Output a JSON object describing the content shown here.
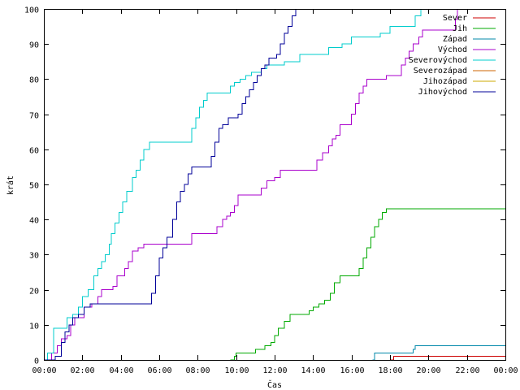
{
  "chart_data": {
    "type": "line",
    "xlabel": "Čas",
    "ylabel": "krát",
    "xlim": [
      0,
      24
    ],
    "ylim": [
      0,
      100
    ],
    "x_ticks": [
      "00:00",
      "02:00",
      "04:00",
      "06:00",
      "08:00",
      "10:00",
      "12:00",
      "14:00",
      "16:00",
      "18:00",
      "20:00",
      "22:00",
      "00:00"
    ],
    "y_ticks": [
      "0",
      "10",
      "20",
      "30",
      "40",
      "50",
      "60",
      "70",
      "80",
      "90",
      "100"
    ],
    "grid": false,
    "legend_position": "top-right",
    "series": [
      {
        "name": "Sever",
        "color": "#cc0000",
        "points": [
          [
            18.0,
            0
          ],
          [
            18.2,
            1
          ],
          [
            24.0,
            1
          ]
        ]
      },
      {
        "name": "Jih",
        "color": "#00aa00",
        "points": [
          [
            9.7,
            0
          ],
          [
            9.9,
            1
          ],
          [
            10.0,
            2
          ],
          [
            10.5,
            2
          ],
          [
            11.0,
            3
          ],
          [
            11.5,
            4
          ],
          [
            11.8,
            5
          ],
          [
            12.0,
            7
          ],
          [
            12.2,
            9
          ],
          [
            12.5,
            11
          ],
          [
            12.8,
            13
          ],
          [
            13.5,
            13
          ],
          [
            13.8,
            14
          ],
          [
            14.0,
            15
          ],
          [
            14.3,
            16
          ],
          [
            14.6,
            17
          ],
          [
            14.9,
            19
          ],
          [
            15.1,
            22
          ],
          [
            15.4,
            24
          ],
          [
            16.2,
            24
          ],
          [
            16.4,
            26
          ],
          [
            16.6,
            29
          ],
          [
            16.8,
            32
          ],
          [
            17.0,
            35
          ],
          [
            17.2,
            38
          ],
          [
            17.4,
            40
          ],
          [
            17.6,
            42
          ],
          [
            17.8,
            43
          ],
          [
            24.0,
            43
          ]
        ]
      },
      {
        "name": "Západ",
        "color": "#0088aa",
        "points": [
          [
            17.1,
            0
          ],
          [
            17.2,
            2
          ],
          [
            19.1,
            2
          ],
          [
            19.2,
            3
          ],
          [
            19.3,
            4
          ],
          [
            24.0,
            4
          ]
        ]
      },
      {
        "name": "Východ",
        "color": "#aa00cc",
        "points": [
          [
            0.0,
            0
          ],
          [
            0.4,
            2
          ],
          [
            0.7,
            4
          ],
          [
            0.9,
            6
          ],
          [
            1.2,
            7
          ],
          [
            1.4,
            10
          ],
          [
            1.6,
            12
          ],
          [
            1.9,
            12
          ],
          [
            2.1,
            15
          ],
          [
            2.5,
            16
          ],
          [
            2.8,
            18
          ],
          [
            3.0,
            20
          ],
          [
            3.6,
            21
          ],
          [
            3.8,
            24
          ],
          [
            4.2,
            26
          ],
          [
            4.4,
            28
          ],
          [
            4.6,
            31
          ],
          [
            4.9,
            32
          ],
          [
            5.2,
            33
          ],
          [
            7.5,
            33
          ],
          [
            7.7,
            36
          ],
          [
            8.9,
            36
          ],
          [
            9.0,
            38
          ],
          [
            9.3,
            40
          ],
          [
            9.5,
            41
          ],
          [
            9.7,
            42
          ],
          [
            9.9,
            44
          ],
          [
            10.1,
            47
          ],
          [
            11.0,
            47
          ],
          [
            11.3,
            49
          ],
          [
            11.6,
            51
          ],
          [
            12.0,
            52
          ],
          [
            12.3,
            54
          ],
          [
            13.9,
            54
          ],
          [
            14.2,
            57
          ],
          [
            14.5,
            59
          ],
          [
            14.8,
            61
          ],
          [
            15.0,
            63
          ],
          [
            15.2,
            64
          ],
          [
            15.4,
            67
          ],
          [
            15.8,
            67
          ],
          [
            16.0,
            70
          ],
          [
            16.2,
            73
          ],
          [
            16.4,
            76
          ],
          [
            16.6,
            78
          ],
          [
            16.8,
            80
          ],
          [
            17.6,
            80
          ],
          [
            17.8,
            81
          ],
          [
            18.4,
            81
          ],
          [
            18.6,
            84
          ],
          [
            18.8,
            86
          ],
          [
            19.0,
            88
          ],
          [
            19.2,
            90
          ],
          [
            19.5,
            92
          ],
          [
            19.7,
            94
          ],
          [
            21.3,
            94
          ],
          [
            21.4,
            97
          ],
          [
            21.5,
            100
          ]
        ]
      },
      {
        "name": "Severovýchod",
        "color": "#00cccc",
        "points": [
          [
            0.0,
            0
          ],
          [
            0.2,
            2
          ],
          [
            0.5,
            9
          ],
          [
            0.8,
            9
          ],
          [
            1.2,
            12
          ],
          [
            1.5,
            13
          ],
          [
            1.8,
            15
          ],
          [
            2.0,
            18
          ],
          [
            2.3,
            20
          ],
          [
            2.6,
            24
          ],
          [
            2.8,
            26
          ],
          [
            3.0,
            28
          ],
          [
            3.2,
            30
          ],
          [
            3.4,
            33
          ],
          [
            3.5,
            36
          ],
          [
            3.7,
            39
          ],
          [
            3.9,
            42
          ],
          [
            4.1,
            45
          ],
          [
            4.3,
            48
          ],
          [
            4.6,
            52
          ],
          [
            4.8,
            54
          ],
          [
            5.0,
            57
          ],
          [
            5.2,
            60
          ],
          [
            5.5,
            62
          ],
          [
            7.5,
            62
          ],
          [
            7.7,
            66
          ],
          [
            7.9,
            69
          ],
          [
            8.1,
            72
          ],
          [
            8.3,
            74
          ],
          [
            8.5,
            76
          ],
          [
            9.5,
            76
          ],
          [
            9.7,
            78
          ],
          [
            9.9,
            79
          ],
          [
            10.2,
            80
          ],
          [
            10.5,
            81
          ],
          [
            10.8,
            82
          ],
          [
            11.3,
            83
          ],
          [
            11.6,
            84
          ],
          [
            12.3,
            84
          ],
          [
            12.5,
            85
          ],
          [
            13.0,
            85
          ],
          [
            13.3,
            87
          ],
          [
            14.5,
            87
          ],
          [
            14.8,
            89
          ],
          [
            15.5,
            90
          ],
          [
            16.0,
            92
          ],
          [
            17.5,
            93
          ],
          [
            18.0,
            95
          ],
          [
            19.0,
            95
          ],
          [
            19.3,
            98
          ],
          [
            19.6,
            100
          ]
        ]
      },
      {
        "name": "Severozápad",
        "color": "#cc6600",
        "points": []
      },
      {
        "name": "Jihozápad",
        "color": "#ccaa00",
        "points": []
      },
      {
        "name": "Jihovýchod",
        "color": "#000099",
        "points": [
          [
            0.0,
            0
          ],
          [
            0.6,
            1
          ],
          [
            0.9,
            5
          ],
          [
            1.1,
            8
          ],
          [
            1.3,
            10
          ],
          [
            1.5,
            12
          ],
          [
            1.8,
            13
          ],
          [
            2.1,
            15
          ],
          [
            2.4,
            16
          ],
          [
            5.4,
            16
          ],
          [
            5.6,
            19
          ],
          [
            5.8,
            24
          ],
          [
            6.0,
            29
          ],
          [
            6.2,
            32
          ],
          [
            6.4,
            35
          ],
          [
            6.7,
            40
          ],
          [
            6.9,
            45
          ],
          [
            7.1,
            48
          ],
          [
            7.3,
            50
          ],
          [
            7.5,
            53
          ],
          [
            7.7,
            55
          ],
          [
            8.6,
            55
          ],
          [
            8.7,
            58
          ],
          [
            8.9,
            62
          ],
          [
            9.1,
            66
          ],
          [
            9.3,
            67
          ],
          [
            9.6,
            69
          ],
          [
            10.1,
            70
          ],
          [
            10.3,
            73
          ],
          [
            10.5,
            75
          ],
          [
            10.7,
            77
          ],
          [
            10.9,
            79
          ],
          [
            11.1,
            81
          ],
          [
            11.3,
            83
          ],
          [
            11.5,
            84
          ],
          [
            11.7,
            86
          ],
          [
            12.1,
            87
          ],
          [
            12.3,
            90
          ],
          [
            12.5,
            93
          ],
          [
            12.7,
            95
          ],
          [
            12.9,
            98
          ],
          [
            13.1,
            100
          ]
        ]
      }
    ]
  }
}
